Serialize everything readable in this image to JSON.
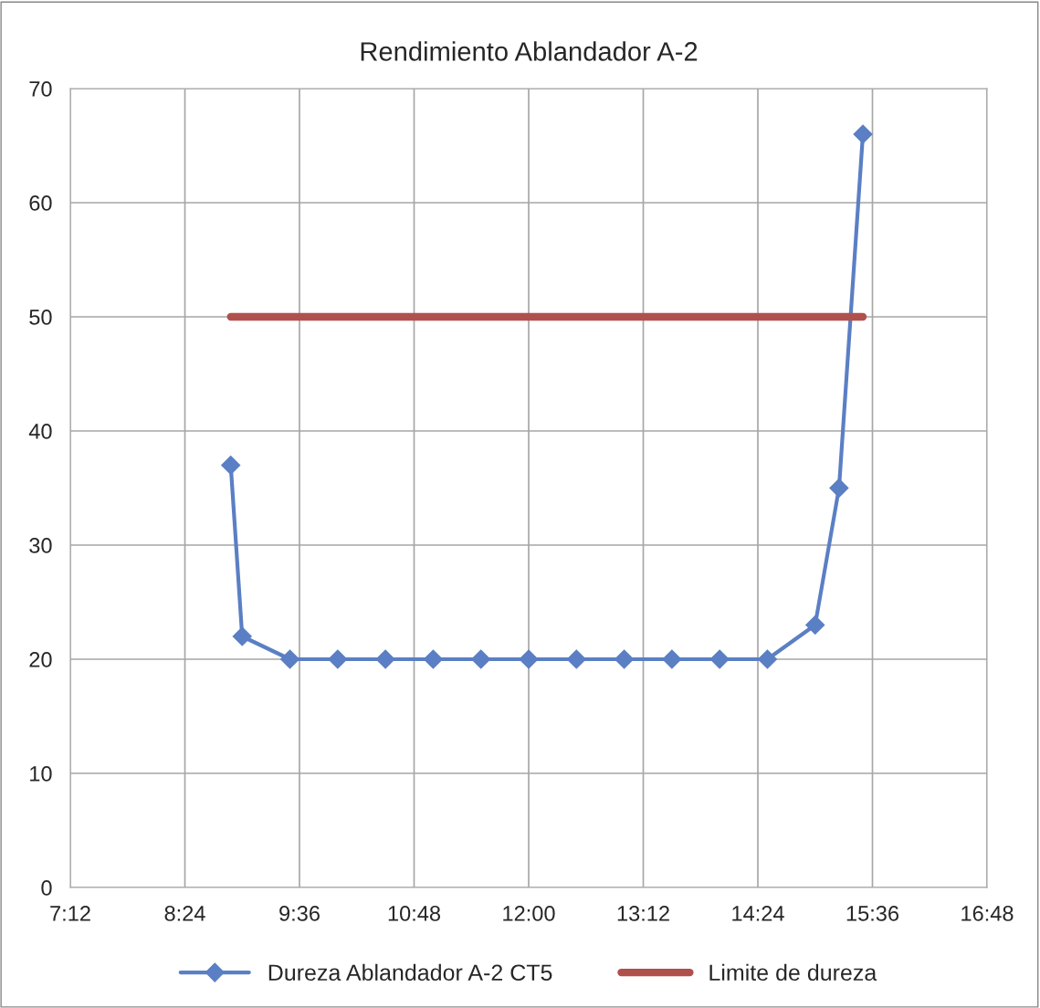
{
  "chart_data": {
    "type": "line",
    "title": "Rendimiento Ablandador A-2",
    "series": [
      {
        "name": "Dureza Ablandador A-2 CT5",
        "color": "#5b7fc4",
        "marker": "diamond",
        "x": [
          8.88,
          9.0,
          9.5,
          10.0,
          10.5,
          11.0,
          11.5,
          12.0,
          12.5,
          13.0,
          13.5,
          14.0,
          14.5,
          15.0,
          15.25,
          15.5
        ],
        "values": [
          37,
          22,
          20,
          20,
          20,
          20,
          20,
          20,
          20,
          20,
          20,
          20,
          20,
          23,
          35,
          66
        ]
      },
      {
        "name": "Limite de dureza",
        "color": "#b0504d",
        "marker": "none",
        "x": [
          8.88,
          15.5
        ],
        "values": [
          50,
          50
        ]
      }
    ],
    "xlim": [
      7.2,
      16.8
    ],
    "xticks": [
      {
        "value": 7.2,
        "label": "7:12"
      },
      {
        "value": 8.4,
        "label": "8:24"
      },
      {
        "value": 9.6,
        "label": "9:36"
      },
      {
        "value": 10.8,
        "label": "10:48"
      },
      {
        "value": 12.0,
        "label": "12:00"
      },
      {
        "value": 13.2,
        "label": "13:12"
      },
      {
        "value": 14.4,
        "label": "14:24"
      },
      {
        "value": 15.6,
        "label": "15:36"
      },
      {
        "value": 16.8,
        "label": "16:48"
      }
    ],
    "ylim": [
      0,
      70
    ],
    "yticks": [
      0,
      10,
      20,
      30,
      40,
      50,
      60,
      70
    ],
    "grid": true,
    "legend": "bottom",
    "line_style": "solid"
  }
}
